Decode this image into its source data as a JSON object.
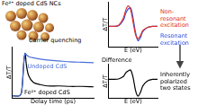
{
  "header": {
    "label": "Fe²⁺ doped CdS NCs"
  },
  "chart_data": [
    {
      "type": "line",
      "annotations": [
        "Carrier quenching"
      ],
      "x_label": "Delay time (ps)",
      "y_label": "ΔT/T",
      "x": [
        -0.5,
        -0.2,
        -0.1,
        0,
        0.05,
        0.1,
        0.2,
        0.4,
        0.7,
        1,
        1.5,
        2,
        2.5,
        3
      ],
      "xlim": [
        -0.5,
        3
      ],
      "ylim": [
        -0.05,
        1.1
      ],
      "tick_labels": false,
      "grid": false,
      "series": [
        {
          "name": "Undoped CdS",
          "color": "#4a6fd8",
          "values": [
            0,
            0,
            0.1,
            0.8,
            0.95,
            0.92,
            0.88,
            0.85,
            0.82,
            0.8,
            0.78,
            0.76,
            0.75,
            0.74
          ]
        },
        {
          "name": "Fe²⁺ doped CdS",
          "color": "#000000",
          "values": [
            0,
            0,
            0.1,
            0.8,
            0.95,
            0.7,
            0.45,
            0.3,
            0.25,
            0.22,
            0.22,
            0.21,
            0.21,
            0.2
          ]
        }
      ]
    },
    {
      "type": "line",
      "x_label": "E (eV)",
      "y_label": "ΔT/T",
      "x": [
        0,
        1,
        2,
        3,
        3.5,
        4,
        4.5,
        5,
        5.5,
        6,
        6.5,
        7,
        8,
        9,
        10
      ],
      "xlim": [
        0,
        10
      ],
      "ylim": [
        -1,
        1.2
      ],
      "tick_labels": false,
      "grid": false,
      "legend": "right",
      "series": [
        {
          "name": "Non-resonant excitation",
          "color": "#e0302a",
          "values": [
            0,
            0,
            0.05,
            0.4,
            0.8,
            1,
            0.8,
            0.2,
            -0.4,
            -0.6,
            -0.45,
            -0.2,
            -0.05,
            0,
            0
          ]
        },
        {
          "name": "Resonant excitation",
          "color": "#3050e0",
          "values": [
            0,
            0,
            0.03,
            0.3,
            0.65,
            0.85,
            0.9,
            0.4,
            -0.3,
            -0.7,
            -0.55,
            -0.25,
            -0.05,
            0,
            0
          ]
        }
      ]
    },
    {
      "type": "line",
      "title": "Difference",
      "annotations": [
        "Inherently polarized two states"
      ],
      "x_label": "E (eV)",
      "y_label": "ΔT/T",
      "x": [
        0,
        1,
        2,
        3,
        3.5,
        4,
        4.5,
        5,
        5.5,
        6,
        6.5,
        7,
        8,
        9,
        10
      ],
      "xlim": [
        0,
        10
      ],
      "ylim": [
        -1,
        0.8
      ],
      "tick_labels": false,
      "grid": false,
      "series": [
        {
          "color": "#000000",
          "values": [
            0,
            0,
            0.02,
            0.15,
            0.35,
            0.45,
            0.5,
            0.1,
            -0.6,
            -0.9,
            -0.7,
            -0.35,
            -0.08,
            0,
            0
          ]
        }
      ]
    }
  ]
}
